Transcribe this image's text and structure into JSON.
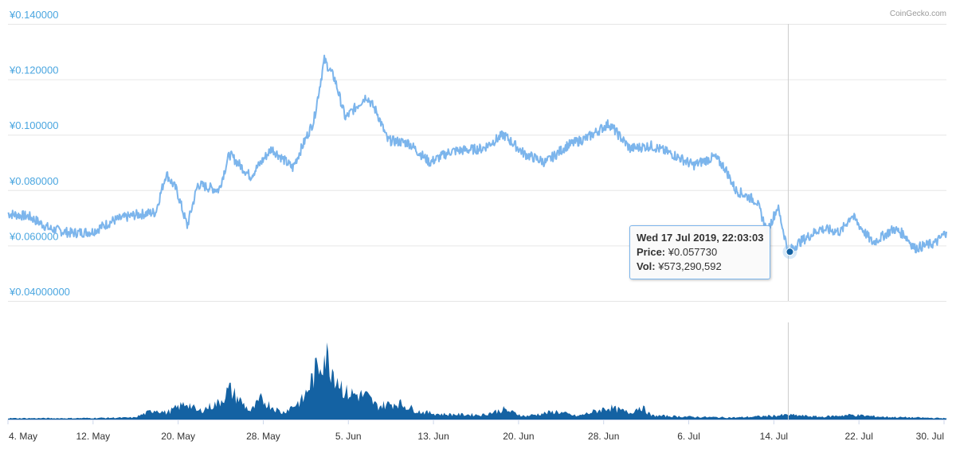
{
  "credit": "CoinGecko.com",
  "chart_data": {
    "type": "line",
    "price_axis": {
      "ticks": [
        "¥0.140000",
        "¥0.120000",
        "¥0.100000",
        "¥0.080000",
        "¥0.060000",
        "¥0.04000000"
      ],
      "tick_values": [
        0.14,
        0.12,
        0.1,
        0.08,
        0.06,
        0.04
      ],
      "ylim": [
        0.04,
        0.14
      ]
    },
    "x_axis": {
      "ticks": [
        "4. May",
        "12. May",
        "20. May",
        "28. May",
        "5. Jun",
        "13. Jun",
        "20. Jun",
        "28. Jun",
        "6. Jul",
        "14. Jul",
        "22. Jul",
        "30. Jul"
      ],
      "start": "2019-05-04",
      "end": "2019-08-01"
    },
    "price_series": {
      "color": "#7cb5ec",
      "points": [
        [
          "2019-05-04",
          0.0715
        ],
        [
          "2019-05-06",
          0.0705
        ],
        [
          "2019-05-08",
          0.066
        ],
        [
          "2019-05-10",
          0.0645
        ],
        [
          "2019-05-12",
          0.065
        ],
        [
          "2019-05-14",
          0.069
        ],
        [
          "2019-05-16",
          0.071
        ],
        [
          "2019-05-18",
          0.072
        ],
        [
          "2019-05-19",
          0.086
        ],
        [
          "2019-05-20",
          0.08
        ],
        [
          "2019-05-21",
          0.067
        ],
        [
          "2019-05-22",
          0.082
        ],
        [
          "2019-05-24",
          0.08
        ],
        [
          "2019-05-25",
          0.093
        ],
        [
          "2019-05-27",
          0.085
        ],
        [
          "2019-05-29",
          0.095
        ],
        [
          "2019-05-31",
          0.088
        ],
        [
          "2019-06-02",
          0.105
        ],
        [
          "2019-06-03",
          0.127
        ],
        [
          "2019-06-04",
          0.12
        ],
        [
          "2019-06-05",
          0.106
        ],
        [
          "2019-06-06",
          0.11
        ],
        [
          "2019-06-07",
          0.114
        ],
        [
          "2019-06-08",
          0.108
        ],
        [
          "2019-06-09",
          0.098
        ],
        [
          "2019-06-11",
          0.097
        ],
        [
          "2019-06-13",
          0.09
        ],
        [
          "2019-06-15",
          0.094
        ],
        [
          "2019-06-18",
          0.095
        ],
        [
          "2019-06-20",
          0.1
        ],
        [
          "2019-06-22",
          0.093
        ],
        [
          "2019-06-24",
          0.09
        ],
        [
          "2019-06-26",
          0.096
        ],
        [
          "2019-06-28",
          0.099
        ],
        [
          "2019-06-30",
          0.104
        ],
        [
          "2019-07-02",
          0.095
        ],
        [
          "2019-07-04",
          0.096
        ],
        [
          "2019-07-06",
          0.093
        ],
        [
          "2019-07-08",
          0.089
        ],
        [
          "2019-07-10",
          0.092
        ],
        [
          "2019-07-11",
          0.088
        ],
        [
          "2019-07-12",
          0.08
        ],
        [
          "2019-07-13",
          0.078
        ],
        [
          "2019-07-14",
          0.076
        ],
        [
          "2019-07-15",
          0.065
        ],
        [
          "2019-07-16",
          0.074
        ],
        [
          "2019-07-17",
          0.0577
        ],
        [
          "2019-07-18",
          0.061
        ],
        [
          "2019-07-20",
          0.066
        ],
        [
          "2019-07-22",
          0.065
        ],
        [
          "2019-07-23",
          0.071
        ],
        [
          "2019-07-25",
          0.061
        ],
        [
          "2019-07-27",
          0.066
        ],
        [
          "2019-07-28",
          0.064
        ],
        [
          "2019-07-29",
          0.059
        ],
        [
          "2019-07-30",
          0.06
        ],
        [
          "2019-07-31",
          0.061
        ],
        [
          "2019-08-01",
          0.065
        ]
      ]
    },
    "volume_series": {
      "color": "#1462a3",
      "points": [
        [
          "2019-05-04",
          0.02
        ],
        [
          "2019-05-10",
          0.02
        ],
        [
          "2019-05-16",
          0.03
        ],
        [
          "2019-05-18",
          0.15
        ],
        [
          "2019-05-19",
          0.1
        ],
        [
          "2019-05-21",
          0.25
        ],
        [
          "2019-05-22",
          0.12
        ],
        [
          "2019-05-24",
          0.25
        ],
        [
          "2019-05-25",
          0.45
        ],
        [
          "2019-05-27",
          0.12
        ],
        [
          "2019-05-28",
          0.3
        ],
        [
          "2019-05-30",
          0.1
        ],
        [
          "2019-06-01",
          0.3
        ],
        [
          "2019-06-02",
          0.65
        ],
        [
          "2019-06-03",
          1.0
        ],
        [
          "2019-06-04",
          0.7
        ],
        [
          "2019-06-05",
          0.4
        ],
        [
          "2019-06-07",
          0.35
        ],
        [
          "2019-06-08",
          0.2
        ],
        [
          "2019-06-10",
          0.25
        ],
        [
          "2019-06-12",
          0.12
        ],
        [
          "2019-06-14",
          0.08
        ],
        [
          "2019-06-18",
          0.07
        ],
        [
          "2019-06-20",
          0.15
        ],
        [
          "2019-06-22",
          0.05
        ],
        [
          "2019-06-25",
          0.12
        ],
        [
          "2019-06-27",
          0.05
        ],
        [
          "2019-06-30",
          0.18
        ],
        [
          "2019-07-02",
          0.1
        ],
        [
          "2019-07-03",
          0.2
        ],
        [
          "2019-07-04",
          0.06
        ],
        [
          "2019-07-08",
          0.04
        ],
        [
          "2019-07-12",
          0.03
        ],
        [
          "2019-07-16",
          0.06
        ],
        [
          "2019-07-17",
          0.07
        ],
        [
          "2019-07-20",
          0.04
        ],
        [
          "2019-07-23",
          0.07
        ],
        [
          "2019-07-26",
          0.04
        ],
        [
          "2019-08-01",
          0.02
        ]
      ]
    },
    "crosshair_date": "2019-07-17",
    "highlight": {
      "date": "2019-07-17",
      "value": 0.05773
    },
    "grid": true,
    "legend": "none"
  },
  "tooltip": {
    "datetime": "Wed 17 Jul 2019, 22:03:03",
    "price_label": "Price:",
    "price_value": "¥0.057730",
    "vol_label": "Vol:",
    "vol_value": "¥573,290,592"
  }
}
